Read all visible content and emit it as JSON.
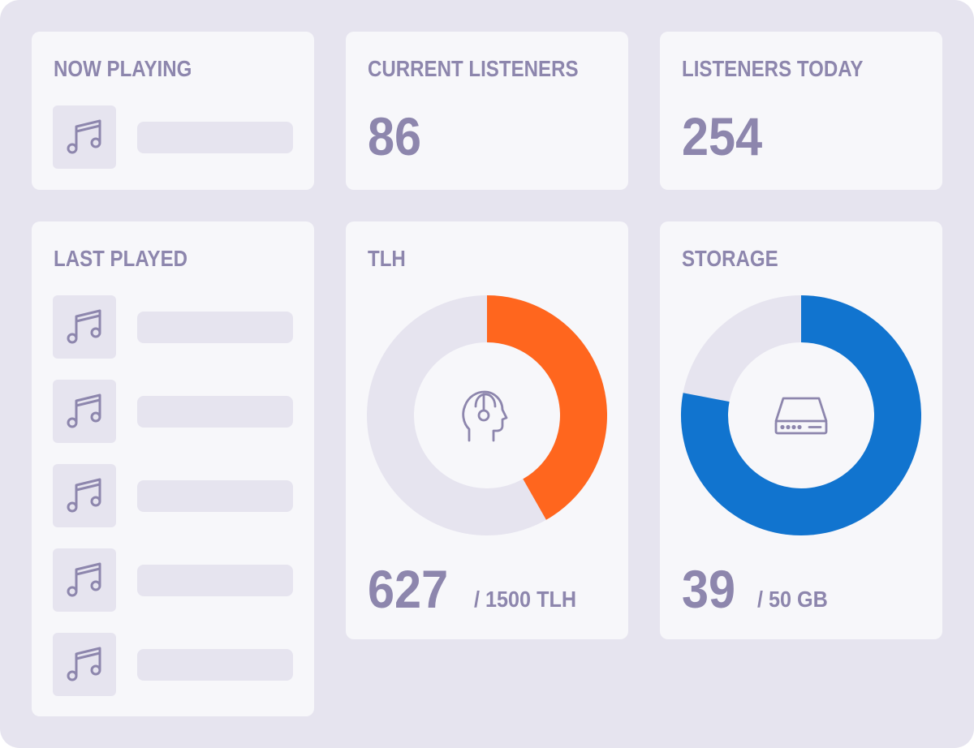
{
  "now_playing": {
    "label": "NOW PLAYING",
    "icon": "music-note-icon"
  },
  "current_listeners": {
    "label": "CURRENT LISTENERS",
    "value": "86"
  },
  "listeners_today": {
    "label": "LISTENERS TODAY",
    "value": "254"
  },
  "last_played": {
    "label": "LAST PLAYED",
    "items": [
      {
        "icon": "music-note-icon"
      },
      {
        "icon": "music-note-icon"
      },
      {
        "icon": "music-note-icon"
      },
      {
        "icon": "music-note-icon"
      },
      {
        "icon": "music-note-icon"
      }
    ]
  },
  "tlh": {
    "label": "TLH",
    "value": "627",
    "limit_text": "/ 1500 TLH",
    "used": 627,
    "total": 1500,
    "icon": "listener-headset-icon",
    "color": "#ff661e"
  },
  "storage": {
    "label": "STORAGE",
    "value": "39",
    "limit_text": "/ 50 GB",
    "used": 39,
    "total": 50,
    "icon": "hard-drive-icon",
    "color": "#1174cf"
  },
  "colors": {
    "background": "#e6e4ef",
    "card": "#f7f7fa",
    "text": "#8d86ad",
    "placeholder": "#e6e4ef"
  }
}
